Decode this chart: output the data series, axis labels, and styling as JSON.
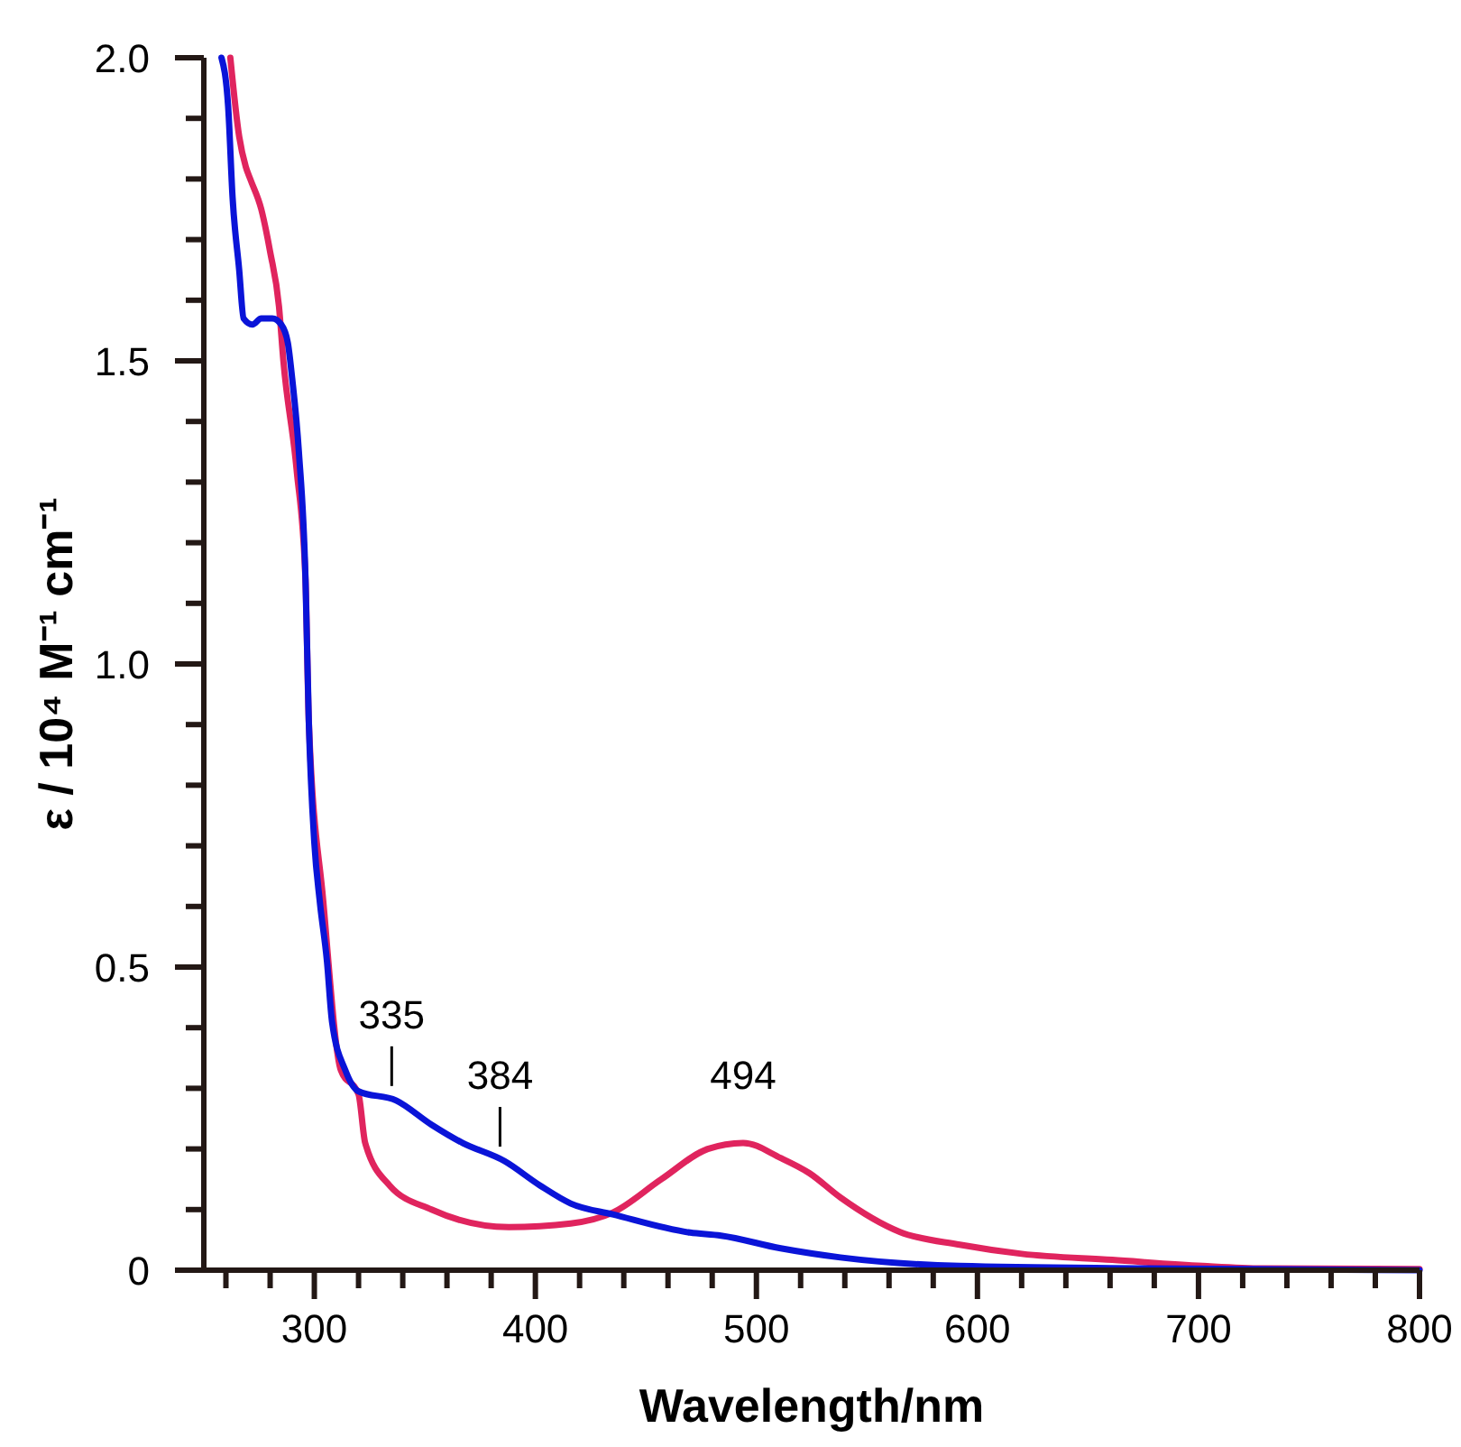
{
  "chart_data": {
    "type": "line",
    "xlabel": "Wavelength/nm",
    "ylabel": "ε / 10⁴ M⁻¹ cm⁻¹",
    "xlim": [
      250,
      800
    ],
    "ylim": [
      0,
      2.0
    ],
    "xticks": [
      {
        "value": 260,
        "label": null
      },
      {
        "value": 280,
        "label": null
      },
      300,
      {
        "value": 320,
        "label": null
      },
      {
        "value": 340,
        "label": null
      },
      {
        "value": 360,
        "label": null
      },
      {
        "value": 380,
        "label": null
      },
      400,
      {
        "value": 420,
        "label": null
      },
      {
        "value": 440,
        "label": null
      },
      {
        "value": 460,
        "label": null
      },
      {
        "value": 480,
        "label": null
      },
      500,
      {
        "value": 520,
        "label": null
      },
      {
        "value": 540,
        "label": null
      },
      {
        "value": 560,
        "label": null
      },
      {
        "value": 580,
        "label": null
      },
      600,
      {
        "value": 620,
        "label": null
      },
      {
        "value": 640,
        "label": null
      },
      {
        "value": 660,
        "label": null
      },
      {
        "value": 680,
        "label": null
      },
      700,
      {
        "value": 720,
        "label": null
      },
      {
        "value": 740,
        "label": null
      },
      {
        "value": 760,
        "label": null
      },
      {
        "value": 780,
        "label": null
      },
      800
    ],
    "yticks": [
      0,
      {
        "value": 0.1,
        "label": null
      },
      {
        "value": 0.2,
        "label": null
      },
      {
        "value": 0.3,
        "label": null
      },
      {
        "value": 0.4,
        "label": null
      },
      0.5,
      {
        "value": 0.6,
        "label": null
      },
      {
        "value": 0.7,
        "label": null
      },
      {
        "value": 0.8,
        "label": null
      },
      {
        "value": 0.9,
        "label": null
      },
      {
        "value": 1.0,
        "label": "1.0"
      },
      {
        "value": 1.1,
        "label": null
      },
      {
        "value": 1.2,
        "label": null
      },
      {
        "value": 1.3,
        "label": null
      },
      {
        "value": 1.4,
        "label": null
      },
      1.5,
      {
        "value": 1.6,
        "label": null
      },
      {
        "value": 1.7,
        "label": null
      },
      {
        "value": 1.8,
        "label": null
      },
      {
        "value": 1.9,
        "label": null
      },
      {
        "value": 2.0,
        "label": "2.0"
      }
    ],
    "grid": false,
    "marker": "none",
    "line_style": "solid",
    "series": [
      {
        "color": "#e0245e",
        "x": [
          262,
          266,
          269,
          271,
          276,
          280,
          284,
          286,
          292,
          296,
          297.5,
          304,
          312,
          320,
          323,
          334,
          353,
          388,
          416,
          435,
          457,
          478,
          494,
          511,
          524,
          538,
          565,
          592,
          620,
          661,
          702,
          729,
          800
        ],
        "values": [
          2.0,
          1.87,
          1.82,
          1.8,
          1.75,
          1.68,
          1.59,
          1.5,
          1.32,
          1.14,
          0.905,
          0.61,
          0.33,
          0.29,
          0.21,
          0.14,
          0.1,
          0.071,
          0.077,
          0.095,
          0.15,
          0.2,
          0.21,
          0.185,
          0.16,
          0.12,
          0.063,
          0.042,
          0.027,
          0.017,
          0.007,
          0.003,
          0.002
        ]
      },
      {
        "color": "#0a14d8",
        "x": [
          258,
          261,
          263,
          266,
          268,
          272,
          276,
          281,
          285,
          288,
          290,
          293,
          296,
          297.5,
          300,
          302.5,
          305.7,
          308,
          314,
          320,
          337,
          353,
          367,
          386,
          402,
          416,
          435,
          470,
          484,
          511,
          538,
          592,
          674,
          800
        ],
        "values": [
          2.0,
          1.92,
          1.77,
          1.65,
          1.57,
          1.56,
          1.57,
          1.57,
          1.56,
          1.53,
          1.47,
          1.35,
          1.14,
          0.905,
          0.705,
          0.607,
          0.51,
          0.41,
          0.33,
          0.295,
          0.28,
          0.24,
          0.21,
          0.18,
          0.14,
          0.11,
          0.092,
          0.062,
          0.057,
          0.036,
          0.021,
          0.007,
          0.003,
          0.0
        ]
      }
    ],
    "annotations": [
      {
        "text": "335",
        "x": 335,
        "y": 0.28
      },
      {
        "text": "384",
        "x": 384,
        "y": 0.18
      },
      {
        "text": "494",
        "x": 494,
        "y": 0.21
      }
    ]
  }
}
